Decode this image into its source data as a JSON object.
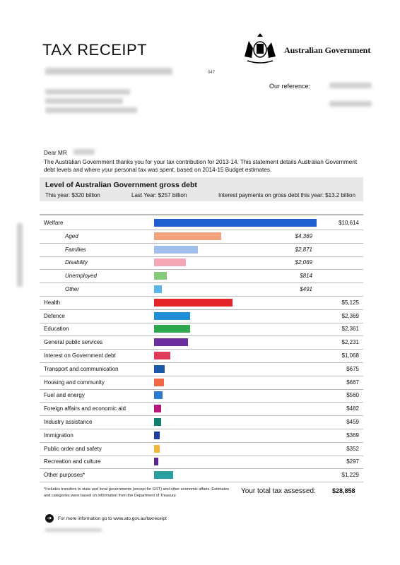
{
  "header": {
    "title": "TAX RECEIPT",
    "government": "Australian Government",
    "code": "047",
    "our_reference_label": "Our reference:"
  },
  "letter": {
    "salutation": "Dear MR",
    "body": "The Australian Government thanks you for your tax contribution for 2013-14. This statement details Australian Government debt levels and where your personal tax was spent, based on 2014-15 Budget estimates."
  },
  "debt": {
    "title": "Level of Australian Government gross debt",
    "this_year": "This year: $320 billion",
    "last_year": "Last Year: $257 billion",
    "interest": "Interest payments on gross debt this year: $13.2 billion"
  },
  "chart_data": {
    "type": "bar",
    "categories": [
      "Welfare",
      "Aged",
      "Families",
      "Disability",
      "Unemployed",
      "Other",
      "Health",
      "Defence",
      "Education",
      "General public services",
      "Interest on Government debt",
      "Transport and communication",
      "Housing and community",
      "Fuel and energy",
      "Foreign affairs and economic aid",
      "Industry assistance",
      "Immigration",
      "Public order and safety",
      "Recreation and culture",
      "Other purposes*"
    ],
    "values": [
      10614,
      4369,
      2871,
      2069,
      814,
      491,
      5125,
      2369,
      2361,
      2231,
      1068,
      675,
      667,
      560,
      482,
      459,
      369,
      352,
      297,
      1229
    ],
    "labels": [
      "$10,614",
      "$4,369",
      "$2,871",
      "$2,069",
      "$814",
      "$491",
      "$5,125",
      "$2,369",
      "$2,361",
      "$2,231",
      "$1,068",
      "$675",
      "$667",
      "$560",
      "$482",
      "$459",
      "$369",
      "$352",
      "$297",
      "$1,229"
    ],
    "sub_items": [
      false,
      true,
      true,
      true,
      true,
      true,
      false,
      false,
      false,
      false,
      false,
      false,
      false,
      false,
      false,
      false,
      false,
      false,
      false,
      false
    ],
    "colors": [
      "#1f5fcf",
      "#f3a27e",
      "#9fbfea",
      "#f4a6b4",
      "#86c97a",
      "#5ab6ea",
      "#e4262a",
      "#1f8fd8",
      "#2ea84f",
      "#6b2f9e",
      "#e23a5b",
      "#1c5aa8",
      "#ef6a45",
      "#2b7ad0",
      "#b3187a",
      "#13806d",
      "#1f3fa0",
      "#f2b43a",
      "#5b2590",
      "#2aa0a0"
    ],
    "xlim": [
      0,
      10614
    ]
  },
  "footer": {
    "note": "*Includes transfers to state and local governments (except for GST) and other economic affairs. Estimates and categories were based on information from the Department of Treasury.",
    "total_label": "Your total tax assessed:",
    "total_value": "$28,858",
    "more_info": "For more information go to www.ato.gov.au/taxreceipt",
    "more_icon": "arrow-right-icon"
  }
}
